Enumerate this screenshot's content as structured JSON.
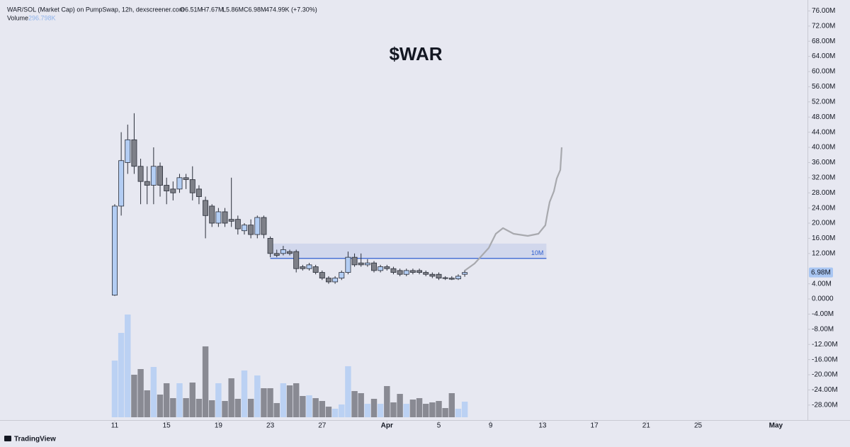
{
  "chart_data": {
    "type": "candlestick",
    "title": "$WAR",
    "header": {
      "symbol": "WAR/SOL (Market Cap) on PumpSwap, 12h, dexscreener.com",
      "open": "O6.51M",
      "high": "H7.67M",
      "low": "L5.86M",
      "close": "C6.98M",
      "change": "474.99K (+7.30%)"
    },
    "x": [
      0,
      0.5,
      1,
      1.5,
      2,
      2.5,
      3,
      3.5,
      4,
      4.5,
      5,
      5.5,
      6,
      6.5,
      7,
      7.5,
      8,
      8.5,
      9,
      9.5,
      10,
      10.5,
      11,
      11.5,
      12,
      12.5,
      13,
      13.5,
      14,
      14.5,
      15,
      15.5,
      16,
      16.5,
      17,
      17.5,
      18,
      18.5,
      19,
      19.5,
      20,
      20.5,
      21,
      21.5,
      22,
      22.5,
      23,
      23.5,
      24,
      24.5,
      25,
      25.5,
      26,
      26.5,
      27
    ],
    "open": [
      1,
      24.5,
      36,
      42,
      35,
      31,
      30,
      35,
      30,
      29,
      29,
      32,
      31.5,
      29,
      26,
      24.5,
      20,
      23,
      21,
      21,
      18,
      19.5,
      17,
      21.5,
      16,
      12,
      12,
      12.5,
      12.5,
      8.5,
      8,
      8.5,
      7,
      5.5,
      4.5,
      5.5,
      7,
      11,
      9.5,
      9,
      9.5,
      7.5,
      8.5,
      8,
      7.5,
      6.5,
      7.5,
      7.5,
      7,
      6.5,
      6.5,
      5.6,
      5.5,
      5.3,
      6.51
    ],
    "high": [
      25,
      44,
      46,
      49,
      37,
      35,
      40,
      36,
      32,
      31,
      33,
      33,
      35,
      30,
      27,
      25,
      24,
      24,
      32,
      22,
      20,
      21,
      22,
      22,
      16.5,
      13,
      14,
      13,
      13,
      9,
      9.5,
      9,
      7.5,
      6,
      6,
      7.5,
      12.5,
      12,
      12,
      10.5,
      10,
      9,
      9,
      8.5,
      8,
      8,
      8,
      8,
      7.5,
      7,
      7,
      6,
      6,
      6.5,
      7.67
    ],
    "low": [
      0.8,
      22,
      33,
      33,
      25,
      25,
      25,
      27,
      25,
      26,
      28,
      29,
      26,
      25,
      16,
      19,
      19,
      19,
      19,
      17,
      17,
      16,
      16,
      16,
      11,
      11,
      11.5,
      11.5,
      7,
      7.5,
      7.5,
      6.5,
      5,
      4,
      4,
      5,
      6.5,
      8.5,
      8.5,
      8.5,
      7,
      7,
      7.5,
      6.5,
      6,
      6,
      6.5,
      6.5,
      6,
      5.5,
      5,
      5,
      5,
      5,
      5.86
    ],
    "close": [
      24.5,
      36.5,
      42,
      35,
      31,
      30,
      35,
      30,
      28.5,
      28,
      32,
      31.5,
      28,
      27,
      22,
      20,
      23,
      20,
      20.5,
      18.5,
      19.5,
      17,
      21.5,
      17,
      12,
      11.5,
      13,
      12,
      8,
      8,
      9,
      7,
      5.5,
      4.5,
      5.5,
      7,
      11,
      9,
      9,
      9.5,
      7.5,
      8.5,
      8,
      7,
      6.5,
      7.5,
      7,
      7,
      6.5,
      6,
      5.5,
      5.4,
      5.2,
      6,
      6.98
    ],
    "up_color": "#b3cdf3",
    "down_color": "#7e8088",
    "outline_color": "#2a2e39",
    "volume": {
      "name": "Volume",
      "last_value_label": "296.798K",
      "values": [
        1080,
        1607,
        1957,
        810,
        918,
        513,
        958,
        432,
        648,
        364,
        648,
        364,
        661,
        351,
        1350,
        324,
        648,
        310,
        742,
        351,
        891,
        351,
        796,
        553,
        553,
        270,
        648,
        607,
        648,
        405,
        418,
        364,
        310,
        202,
        162,
        243,
        972,
        499,
        459,
        256,
        351,
        256,
        594,
        283,
        445,
        256,
        337,
        364,
        256,
        283,
        310,
        175,
        459,
        162,
        296.798
      ]
    },
    "zone": {
      "x": [
        12,
        33.3
      ],
      "values": [
        10.7,
        14.6
      ],
      "label": "10M",
      "color": "#2f5fd0"
    },
    "projection": {
      "color": "#a8a9ae",
      "x": [
        27.0,
        27.76,
        28.85,
        29.4,
        29.95,
        30.77,
        31.86,
        32.68,
        33.22,
        33.39,
        33.55,
        33.88,
        34.1,
        34.37,
        34.48
      ],
      "values": [
        7.48,
        9.35,
        13.46,
        17.2,
        18.69,
        17.2,
        16.64,
        17.2,
        19.44,
        22.8,
        25.6,
        28.41,
        31.78,
        34.02,
        40.0
      ]
    },
    "last_price": {
      "value": 6.98,
      "label": "6.98M"
    },
    "xlim": [
      -8.85,
      53.44
    ],
    "xticks": [
      {
        "value": 0,
        "label": "11"
      },
      {
        "value": 4,
        "label": "15"
      },
      {
        "value": 8,
        "label": "19"
      },
      {
        "value": 12,
        "label": "23"
      },
      {
        "value": 16,
        "label": "27"
      },
      {
        "value": 21,
        "label": "Apr"
      },
      {
        "value": 25,
        "label": "5"
      },
      {
        "value": 29,
        "label": "9"
      },
      {
        "value": 33,
        "label": "13"
      },
      {
        "value": 37,
        "label": "17"
      },
      {
        "value": 41,
        "label": "21"
      },
      {
        "value": 45,
        "label": "25"
      },
      {
        "value": 51,
        "label": "May"
      }
    ],
    "ylim": [
      -31.96,
      78.88
    ],
    "yticks": [
      {
        "value": 76,
        "label": "76.00M"
      },
      {
        "value": 72,
        "label": "72.00M"
      },
      {
        "value": 68,
        "label": "68.00M"
      },
      {
        "value": 64,
        "label": "64.00M"
      },
      {
        "value": 60,
        "label": "60.00M"
      },
      {
        "value": 56,
        "label": "56.00M"
      },
      {
        "value": 52,
        "label": "52.00M"
      },
      {
        "value": 48,
        "label": "48.00M"
      },
      {
        "value": 44,
        "label": "44.00M"
      },
      {
        "value": 40,
        "label": "40.00M"
      },
      {
        "value": 36,
        "label": "36.00M"
      },
      {
        "value": 32,
        "label": "32.00M"
      },
      {
        "value": 28,
        "label": "28.00M"
      },
      {
        "value": 24,
        "label": "24.00M"
      },
      {
        "value": 20,
        "label": "20.00M"
      },
      {
        "value": 16,
        "label": "16.00M"
      },
      {
        "value": 12,
        "label": "12.00M"
      },
      {
        "value": 4,
        "label": "4.00M"
      },
      {
        "value": 0,
        "label": "0.0000"
      },
      {
        "value": -4,
        "label": "-4.00M"
      },
      {
        "value": -8,
        "label": "-8.00M"
      },
      {
        "value": -12,
        "label": "-12.00M"
      },
      {
        "value": -16,
        "label": "-16.00M"
      },
      {
        "value": -20,
        "label": "-20.00M"
      },
      {
        "value": -24,
        "label": "-24.00M"
      },
      {
        "value": -28,
        "label": "-28.00M"
      }
    ],
    "grid": false,
    "footer": "TradingView"
  }
}
